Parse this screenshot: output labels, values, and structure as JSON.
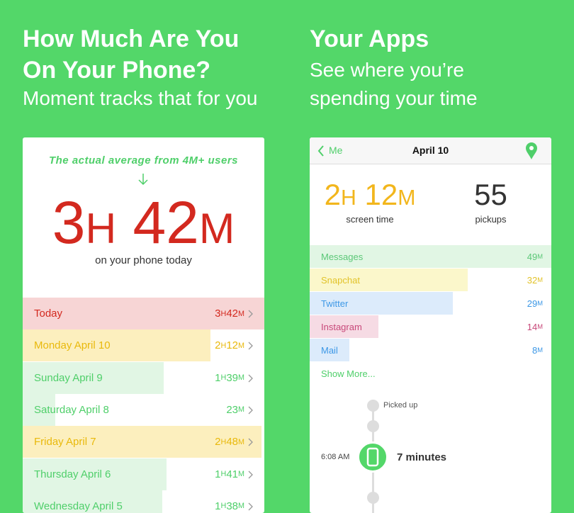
{
  "units": {
    "hour": "H",
    "minute": "M"
  },
  "left": {
    "title_lines": [
      "How Much Are You",
      "On Your Phone?"
    ],
    "subtitle": "Moment tracks that for you",
    "note": "The actual average from 4M+ users",
    "average": {
      "h": 3,
      "m": 42,
      "color": "#d3291f"
    },
    "caption": "on your phone today",
    "days": [
      {
        "label": "Today",
        "h": 3,
        "m": 42,
        "color": "#d3291f",
        "bg": "#f7d5d5"
      },
      {
        "label": "Monday April 10",
        "h": 2,
        "m": 12,
        "color": "#e9b90c",
        "bg": "#fcefbe"
      },
      {
        "label": "Sunday April 9",
        "h": 1,
        "m": 39,
        "color": "#4fcf6a",
        "bg": "#e1f6e4"
      },
      {
        "label": "Saturday April 8",
        "h": 0,
        "m": 23,
        "color": "#4fcf6a",
        "bg": "#e1f6e4"
      },
      {
        "label": "Friday April 7",
        "h": 2,
        "m": 48,
        "color": "#e9b90c",
        "bg": "#fcefbe"
      },
      {
        "label": "Thursday April 6",
        "h": 1,
        "m": 41,
        "color": "#4fcf6a",
        "bg": "#e1f6e4"
      },
      {
        "label": "Wednesday April 5",
        "h": 1,
        "m": 38,
        "color": "#4fcf6a",
        "bg": "#e1f6e4"
      }
    ]
  },
  "right": {
    "title": "Your Apps",
    "subtitle_lines": [
      "See where you’re",
      "spending your time"
    ],
    "nav": {
      "back": "Me",
      "title": "April 10"
    },
    "screen_time": {
      "h": 2,
      "m": 12,
      "label": "screen time",
      "color": "#f2b61c"
    },
    "pickups": {
      "value": 55,
      "label": "pickups"
    },
    "apps": [
      {
        "name": "Messages",
        "m": 49,
        "color": "#5cc878",
        "bg": "#e1f6e4"
      },
      {
        "name": "Snapchat",
        "m": 32,
        "color": "#e2c32a",
        "bg": "#fbf7cb"
      },
      {
        "name": "Twitter",
        "m": 29,
        "color": "#3d98e6",
        "bg": "#dcebfb"
      },
      {
        "name": "Instagram",
        "m": 14,
        "color": "#c8497a",
        "bg": "#f6dbe4"
      },
      {
        "name": "Mail",
        "m": 8,
        "color": "#3d98e6",
        "bg": "#dcebfb"
      }
    ],
    "show_more": "Show More...",
    "timeline": {
      "picked_up": "Picked up",
      "time": "6:08 AM",
      "duration": "7 minutes"
    }
  }
}
